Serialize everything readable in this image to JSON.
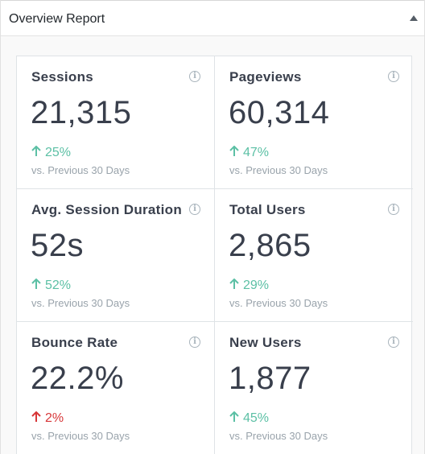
{
  "header": {
    "title": "Overview Report"
  },
  "icons": {
    "toggle": "caret-up-icon",
    "info": "info-icon",
    "trend_up": "arrow-up-icon",
    "trend_down": "arrow-down-icon",
    "info_glyph": "i"
  },
  "colors": {
    "up": "#5cc0a5",
    "down": "#d73638"
  },
  "tiles": [
    {
      "label": "Sessions",
      "value": "21,315",
      "change": "25%",
      "direction": "up",
      "compare": "vs. Previous 30 Days"
    },
    {
      "label": "Pageviews",
      "value": "60,314",
      "change": "47%",
      "direction": "up",
      "compare": "vs. Previous 30 Days"
    },
    {
      "label": "Avg. Session Duration",
      "value": "52s",
      "change": "52%",
      "direction": "up",
      "compare": "vs. Previous 30 Days"
    },
    {
      "label": "Total Users",
      "value": "2,865",
      "change": "29%",
      "direction": "up",
      "compare": "vs. Previous 30 Days"
    },
    {
      "label": "Bounce Rate",
      "value": "22.2%",
      "change": "2%",
      "direction": "down",
      "compare": "vs. Previous 30 Days"
    },
    {
      "label": "New Users",
      "value": "1,877",
      "change": "45%",
      "direction": "up",
      "compare": "vs. Previous 30 Days"
    }
  ]
}
